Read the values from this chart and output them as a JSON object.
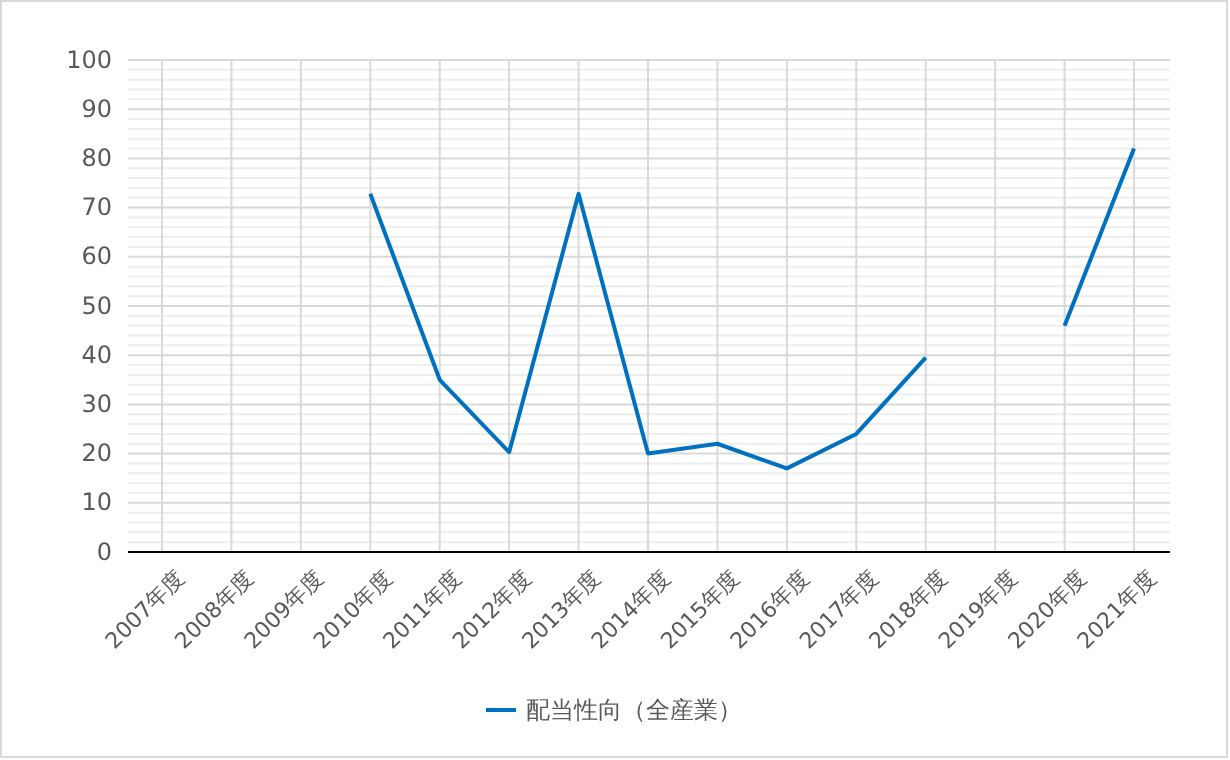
{
  "chart_data": {
    "type": "line",
    "categories": [
      "2007年度",
      "2008年度",
      "2009年度",
      "2010年度",
      "2011年度",
      "2012年度",
      "2013年度",
      "2014年度",
      "2015年度",
      "2016年度",
      "2017年度",
      "2018年度",
      "2019年度",
      "2020年度",
      "2021年度"
    ],
    "series": [
      {
        "name": "配当性向（全産業）",
        "color": "#0070c0",
        "values": [
          null,
          null,
          null,
          72.8,
          35,
          20.3,
          72.8,
          20,
          22,
          17,
          24,
          39.5,
          null,
          46,
          82
        ]
      }
    ],
    "ylim": [
      0,
      100
    ],
    "yticks": [
      0,
      10,
      20,
      30,
      40,
      50,
      60,
      70,
      80,
      90,
      100
    ],
    "grid": true,
    "legend": "bottom",
    "marker": "none",
    "line_style": "solid"
  }
}
